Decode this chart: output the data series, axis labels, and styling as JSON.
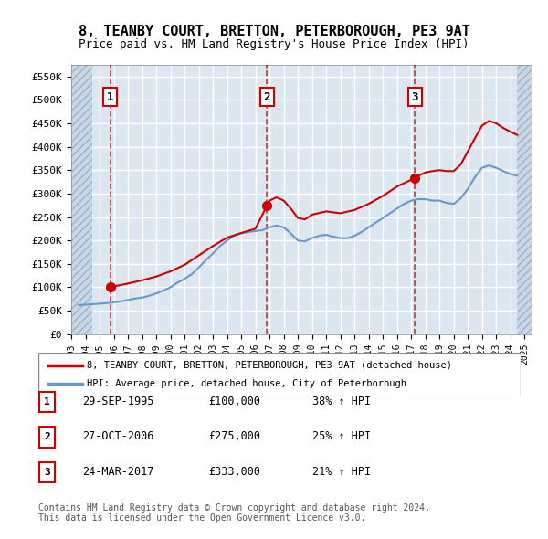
{
  "title_line1": "8, TEANBY COURT, BRETTON, PETERBOROUGH, PE3 9AT",
  "title_line2": "Price paid vs. HM Land Registry's House Price Index (HPI)",
  "xlabel": "",
  "ylabel": "",
  "ylim": [
    0,
    575000
  ],
  "yticks": [
    0,
    50000,
    100000,
    150000,
    200000,
    250000,
    300000,
    350000,
    400000,
    450000,
    500000,
    550000
  ],
  "ytick_labels": [
    "£0",
    "£50K",
    "£100K",
    "£150K",
    "£200K",
    "£250K",
    "£300K",
    "£350K",
    "£400K",
    "£450K",
    "£500K",
    "£550K"
  ],
  "bg_color": "#dce6f1",
  "plot_bg": "#dce6f1",
  "hatch_color": "#b8c8d8",
  "grid_color": "#ffffff",
  "sale_dates": [
    "1995-09-29",
    "2006-10-27",
    "2017-03-24"
  ],
  "sale_prices": [
    100000,
    275000,
    333000
  ],
  "sale_labels": [
    "1",
    "2",
    "3"
  ],
  "sale_info": [
    {
      "label": "1",
      "date": "29-SEP-1995",
      "price": "£100,000",
      "hpi": "38% ↑ HPI"
    },
    {
      "label": "2",
      "date": "27-OCT-2006",
      "price": "£275,000",
      "hpi": "25% ↑ HPI"
    },
    {
      "label": "3",
      "date": "24-MAR-2017",
      "price": "£333,000",
      "hpi": "21% ↑ HPI"
    }
  ],
  "property_color": "#cc0000",
  "hpi_color": "#6699cc",
  "legend_property": "8, TEANBY COURT, BRETTON, PETERBOROUGH, PE3 9AT (detached house)",
  "legend_hpi": "HPI: Average price, detached house, City of Peterborough",
  "footer": "Contains HM Land Registry data © Crown copyright and database right 2024.\nThis data is licensed under the Open Government Licence v3.0.",
  "hpi_data_x": [
    1993.5,
    1994.0,
    1994.5,
    1995.0,
    1995.75,
    1996.0,
    1996.5,
    1997.0,
    1997.5,
    1998.0,
    1998.5,
    1999.0,
    1999.5,
    2000.0,
    2000.5,
    2001.0,
    2001.5,
    2002.0,
    2002.5,
    2003.0,
    2003.5,
    2004.0,
    2004.5,
    2005.0,
    2005.5,
    2006.0,
    2006.5,
    2007.0,
    2007.5,
    2008.0,
    2008.5,
    2009.0,
    2009.5,
    2010.0,
    2010.5,
    2011.0,
    2011.5,
    2012.0,
    2012.5,
    2013.0,
    2013.5,
    2014.0,
    2014.5,
    2015.0,
    2015.5,
    2016.0,
    2016.5,
    2017.0,
    2017.5,
    2018.0,
    2018.5,
    2019.0,
    2019.5,
    2020.0,
    2020.5,
    2021.0,
    2021.5,
    2022.0,
    2022.5,
    2023.0,
    2023.5,
    2024.0,
    2024.5
  ],
  "hpi_data_y": [
    62000,
    63000,
    64000,
    65000,
    67000,
    68000,
    70000,
    73000,
    76000,
    78000,
    82000,
    87000,
    93000,
    100000,
    110000,
    118000,
    128000,
    142000,
    158000,
    172000,
    188000,
    200000,
    210000,
    215000,
    218000,
    220000,
    222000,
    228000,
    232000,
    228000,
    215000,
    200000,
    198000,
    205000,
    210000,
    212000,
    208000,
    205000,
    205000,
    210000,
    218000,
    228000,
    238000,
    248000,
    258000,
    268000,
    278000,
    285000,
    288000,
    288000,
    285000,
    285000,
    280000,
    278000,
    290000,
    310000,
    335000,
    355000,
    360000,
    355000,
    348000,
    342000,
    338000
  ],
  "prop_data_x": [
    1993.5,
    1995.75,
    1996.0,
    1997.0,
    1998.0,
    1999.0,
    2000.0,
    2001.0,
    2002.0,
    2003.0,
    2004.0,
    2005.0,
    2006.0,
    2006.83,
    2007.0,
    2007.5,
    2008.0,
    2008.5,
    2009.0,
    2009.5,
    2010.0,
    2011.0,
    2012.0,
    2013.0,
    2014.0,
    2015.0,
    2016.0,
    2017.25,
    2017.5,
    2018.0,
    2018.5,
    2019.0,
    2019.5,
    2020.0,
    2020.5,
    2021.0,
    2021.5,
    2022.0,
    2022.5,
    2023.0,
    2023.5,
    2024.0,
    2024.5
  ],
  "prop_data_y": [
    null,
    100000,
    102000,
    108000,
    115000,
    123000,
    134000,
    148000,
    168000,
    188000,
    206000,
    216000,
    225000,
    275000,
    285000,
    292000,
    285000,
    268000,
    248000,
    245000,
    255000,
    262000,
    258000,
    265000,
    278000,
    295000,
    315000,
    333000,
    338000,
    345000,
    348000,
    350000,
    348000,
    348000,
    362000,
    390000,
    418000,
    445000,
    455000,
    450000,
    440000,
    432000,
    425000
  ]
}
